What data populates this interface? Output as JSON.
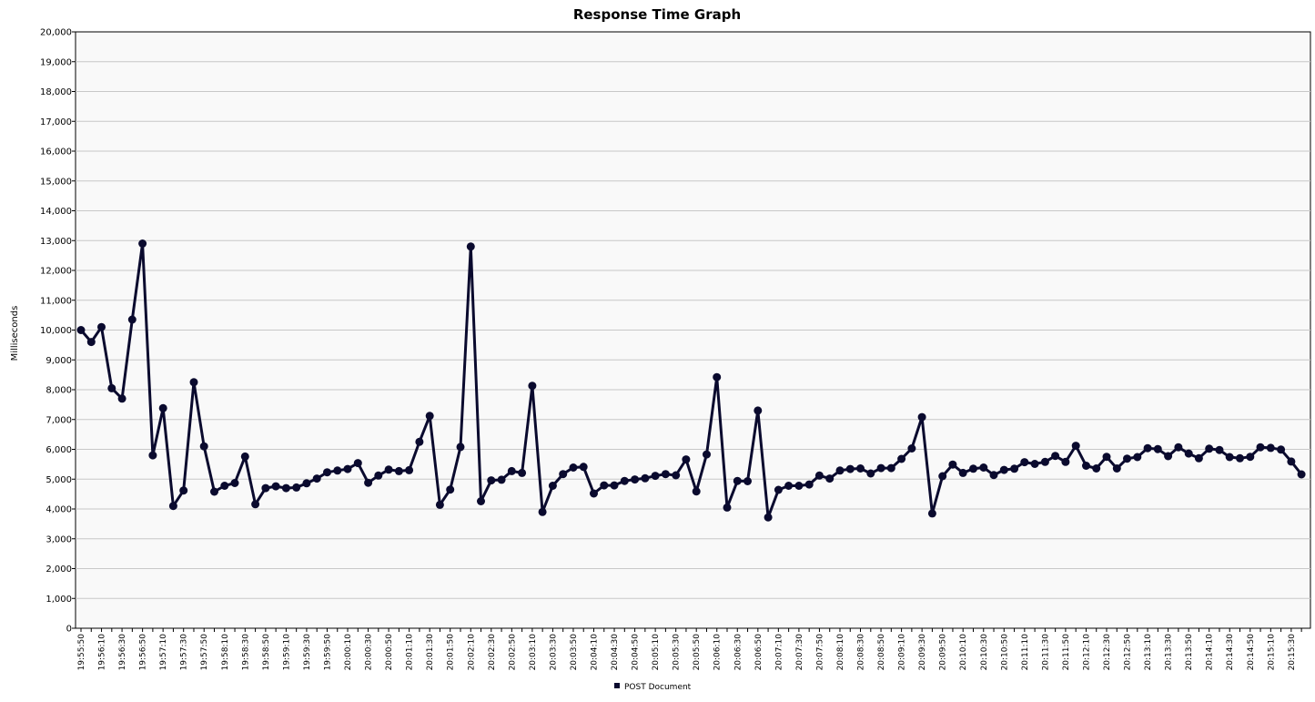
{
  "chart_data": {
    "type": "line",
    "title": "Response Time Graph",
    "xlabel": "",
    "ylabel": "Milliseconds",
    "ylim": [
      0,
      20000
    ],
    "y_ticks": [
      "0",
      "1,000",
      "2,000",
      "3,000",
      "4,000",
      "5,000",
      "6,000",
      "7,000",
      "8,000",
      "9,000",
      "10,000",
      "11,000",
      "12,000",
      "13,000",
      "14,000",
      "15,000",
      "16,000",
      "17,000",
      "18,000",
      "19,000",
      "20,000"
    ],
    "x_tick_labels": [
      "19:55:50",
      "19:56:10",
      "19:56:30",
      "19:56:50",
      "19:57:10",
      "19:57:30",
      "19:57:50",
      "19:58:10",
      "19:58:30",
      "19:58:50",
      "19:59:10",
      "19:59:30",
      "19:59:50",
      "20:00:10",
      "20:00:30",
      "20:00:50",
      "20:01:10",
      "20:01:30",
      "20:01:50",
      "20:02:10",
      "20:02:30",
      "20:02:50",
      "20:03:10",
      "20:03:30",
      "20:03:50",
      "20:04:10",
      "20:04:30",
      "20:04:50",
      "20:05:10",
      "20:05:30",
      "20:05:50",
      "20:06:10",
      "20:06:30",
      "20:06:50",
      "20:07:10",
      "20:07:30",
      "20:07:50",
      "20:08:10",
      "20:08:30",
      "20:08:50",
      "20:09:10",
      "20:09:30",
      "20:09:50",
      "20:10:10",
      "20:10:30",
      "20:10:50",
      "20:11:10",
      "20:11:30",
      "20:11:50",
      "20:12:10",
      "20:12:30",
      "20:12:50",
      "20:13:10",
      "20:13:30",
      "20:13:50",
      "20:14:10",
      "20:14:30",
      "20:14:50",
      "20:15:10",
      "20:15:30"
    ],
    "x_start": "19:55:50",
    "x_interval_seconds": 10,
    "grid": true,
    "legend_position": "bottom-center",
    "series": [
      {
        "name": "POST Document",
        "color": "#0a0a2e",
        "values": [
          10000,
          9600,
          10100,
          8050,
          7700,
          10350,
          12900,
          5800,
          7380,
          4100,
          4620,
          8250,
          6100,
          4580,
          4780,
          4870,
          5760,
          4160,
          4700,
          4760,
          4700,
          4720,
          4860,
          5020,
          5230,
          5290,
          5340,
          5540,
          4880,
          5120,
          5320,
          5270,
          5300,
          6250,
          7120,
          4140,
          4650,
          6080,
          12800,
          4260,
          4960,
          4980,
          5270,
          5210,
          8130,
          3900,
          4780,
          5170,
          5390,
          5410,
          4520,
          4790,
          4790,
          4940,
          4990,
          5030,
          5110,
          5170,
          5130,
          5660,
          4590,
          5830,
          8420,
          4050,
          4940,
          4930,
          7300,
          3720,
          4640,
          4780,
          4780,
          4820,
          5120,
          5020,
          5290,
          5340,
          5360,
          5190,
          5370,
          5370,
          5680,
          6030,
          7080,
          3850,
          5100,
          5490,
          5210,
          5350,
          5390,
          5140,
          5310,
          5350,
          5570,
          5510,
          5580,
          5780,
          5580,
          6120,
          5450,
          5360,
          5750,
          5360,
          5690,
          5740,
          6040,
          6010,
          5770,
          6070,
          5860,
          5700,
          6020,
          5980,
          5740,
          5700,
          5750,
          6070,
          6050,
          5990,
          5590,
          5160
        ]
      }
    ]
  }
}
